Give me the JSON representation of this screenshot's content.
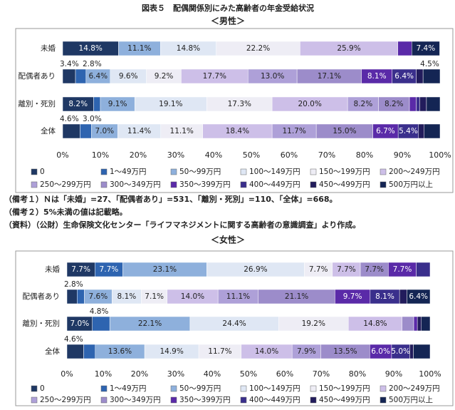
{
  "title": "図表５　配偶関係別にみた高齢者の年金受給状況",
  "notes": [
    "（備考１）Ｎは「未婚」=27、「配偶者あり」=531、「離別・死別」=110、「全体」=668。",
    "（備考２）5%未満の値は記載略。",
    "（資料）（公財）生命保険文化センター「ライフマネジメントに関する高齢者の意識調査」より作成。"
  ],
  "chart_data": [
    {
      "type": "bar",
      "subtitle": "＜男性＞",
      "categories": [
        "未婚",
        "配偶者あり",
        "離別・死別",
        "全体"
      ],
      "xlim": [
        0,
        100
      ],
      "xticks": [
        {
          "value": 0,
          "label": "0%"
        },
        {
          "value": 10,
          "label": "10%"
        },
        {
          "value": 20,
          "label": "20%"
        },
        {
          "value": 30,
          "label": "30%"
        },
        {
          "value": 40,
          "label": "40%"
        },
        {
          "value": 50,
          "label": "50%"
        },
        {
          "value": 60,
          "label": "60%"
        },
        {
          "value": 70,
          "label": "70%"
        },
        {
          "value": 80,
          "label": "80%"
        },
        {
          "value": 90,
          "label": "90%"
        },
        {
          "value": 100,
          "label": "100%"
        }
      ],
      "series": [
        {
          "name": "0",
          "color": "#1f3864",
          "values": [
            14.8,
            3.4,
            8.2,
            4.6
          ],
          "value_labels": [
            "14.8%",
            "3.4%",
            "8.2%",
            "4.6%"
          ]
        },
        {
          "name": "1～49万円",
          "color": "#2e64b0",
          "values": [
            0,
            2.8,
            1.8,
            3.0
          ],
          "value_labels": [
            null,
            "2.8%",
            null,
            "3.0%"
          ]
        },
        {
          "name": "50～99万円",
          "color": "#8eb0dc",
          "values": [
            11.1,
            6.4,
            9.1,
            7.0
          ],
          "value_labels": [
            "11.1%",
            "6.4%",
            "9.1%",
            "7.0%"
          ]
        },
        {
          "name": "100～149万円",
          "color": "#dfe7f4",
          "values": [
            14.8,
            9.6,
            19.1,
            11.4
          ],
          "value_labels": [
            "14.8%",
            "9.6%",
            "19.1%",
            "11.4%"
          ]
        },
        {
          "name": "150～199万円",
          "color": "#eeedf5",
          "values": [
            22.2,
            9.2,
            17.3,
            11.1
          ],
          "value_labels": [
            "22.2%",
            "9.2%",
            "17.3%",
            "11.1%"
          ]
        },
        {
          "name": "200～249万円",
          "color": "#cdbfe8",
          "values": [
            25.9,
            17.7,
            20.0,
            18.4
          ],
          "value_labels": [
            "25.9%",
            "17.7%",
            "20.0%",
            "18.4%"
          ]
        },
        {
          "name": "250～299万円",
          "color": "#aea0d8",
          "values": [
            0,
            13.0,
            8.2,
            11.7
          ],
          "value_labels": [
            null,
            "13.0%",
            "8.2%",
            "11.7%"
          ]
        },
        {
          "name": "300～349万円",
          "color": "#9c8cca",
          "values": [
            0,
            17.1,
            8.2,
            15.0
          ],
          "value_labels": [
            null,
            "17.1%",
            "8.2%",
            "15.0%"
          ]
        },
        {
          "name": "350～399万円",
          "color": "#5a2aa8",
          "values": [
            3.7,
            8.1,
            1.8,
            6.7
          ],
          "value_labels": [
            null,
            "8.1%",
            null,
            "6.7%"
          ]
        },
        {
          "name": "400～449万円",
          "color": "#3a2f8c",
          "values": [
            0,
            6.4,
            0.9,
            5.4
          ],
          "value_labels": [
            null,
            "6.4%",
            null,
            "5.4%"
          ]
        },
        {
          "name": "450～499万円",
          "color": "#221c5c",
          "values": [
            0,
            1.8,
            1.8,
            1.5
          ],
          "value_labels": [
            null,
            null,
            null,
            null
          ]
        },
        {
          "name": "500万円以上",
          "color": "#142554",
          "values": [
            7.4,
            4.5,
            3.6,
            4.2
          ],
          "value_labels": [
            "7.4%",
            "4.5%",
            null,
            null
          ]
        }
      ]
    },
    {
      "type": "bar",
      "subtitle": "＜女性＞",
      "categories": [
        "未婚",
        "配偶者あり",
        "離別・死別",
        "全体"
      ],
      "xlim": [
        0,
        100
      ],
      "xticks": [
        {
          "value": 0,
          "label": "0%"
        },
        {
          "value": 10,
          "label": "10%"
        },
        {
          "value": 20,
          "label": "20%"
        },
        {
          "value": 30,
          "label": "30%"
        },
        {
          "value": 40,
          "label": "40%"
        },
        {
          "value": 50,
          "label": "50%"
        },
        {
          "value": 60,
          "label": "60%"
        },
        {
          "value": 70,
          "label": "70%"
        },
        {
          "value": 80,
          "label": "80%"
        },
        {
          "value": 90,
          "label": "90%"
        },
        {
          "value": 100,
          "label": "100%"
        }
      ],
      "series": [
        {
          "name": "0",
          "color": "#1f3864",
          "values": [
            7.7,
            2.8,
            7.0,
            4.6
          ],
          "value_labels": [
            "7.7%",
            "2.8%",
            "7.0%",
            "4.6%"
          ]
        },
        {
          "name": "1～49万円",
          "color": "#2e64b0",
          "values": [
            7.7,
            2.0,
            4.8,
            3.2
          ],
          "value_labels": [
            "7.7%",
            null,
            "4.8%",
            null
          ]
        },
        {
          "name": "50～99万円",
          "color": "#8eb0dc",
          "values": [
            23.1,
            7.6,
            22.1,
            13.6
          ],
          "value_labels": [
            "23.1%",
            "7.6%",
            "22.1%",
            "13.6%"
          ]
        },
        {
          "name": "100～149万円",
          "color": "#dfe7f4",
          "values": [
            26.9,
            8.1,
            24.4,
            14.9
          ],
          "value_labels": [
            "26.9%",
            "8.1%",
            "24.4%",
            "14.9%"
          ]
        },
        {
          "name": "150～199万円",
          "color": "#eeedf5",
          "values": [
            7.7,
            7.1,
            19.2,
            11.7
          ],
          "value_labels": [
            "7.7%",
            "7.1%",
            "19.2%",
            "11.7%"
          ]
        },
        {
          "name": "200～249万円",
          "color": "#cdbfe8",
          "values": [
            7.7,
            14.0,
            14.8,
            14.0
          ],
          "value_labels": [
            "7.7%",
            "14.0%",
            "14.8%",
            "14.0%"
          ]
        },
        {
          "name": "250～299万円",
          "color": "#aea0d8",
          "values": [
            0,
            11.1,
            0,
            7.9
          ],
          "value_labels": [
            null,
            "11.1%",
            null,
            "7.9%"
          ]
        },
        {
          "name": "300～349万円",
          "color": "#9c8cca",
          "values": [
            7.7,
            21.1,
            3.2,
            13.5
          ],
          "value_labels": [
            "7.7%",
            "21.1%",
            null,
            "13.5%"
          ]
        },
        {
          "name": "350～399万円",
          "color": "#5a2aa8",
          "values": [
            7.7,
            9.7,
            1.0,
            6.0
          ],
          "value_labels": [
            "7.7%",
            "9.7%",
            null,
            "6.0%"
          ]
        },
        {
          "name": "400～449万円",
          "color": "#3a2f8c",
          "values": [
            3.8,
            8.1,
            0,
            5.0
          ],
          "value_labels": [
            null,
            "8.1%",
            null,
            "5.0%"
          ]
        },
        {
          "name": "450～499万円",
          "color": "#221c5c",
          "values": [
            0,
            2.0,
            1.1,
            1.0
          ],
          "value_labels": [
            null,
            null,
            null,
            null
          ]
        },
        {
          "name": "500万円以上",
          "color": "#142554",
          "values": [
            0,
            6.4,
            2.4,
            4.6
          ],
          "value_labels": [
            null,
            "6.4%",
            null,
            null
          ]
        }
      ]
    }
  ]
}
